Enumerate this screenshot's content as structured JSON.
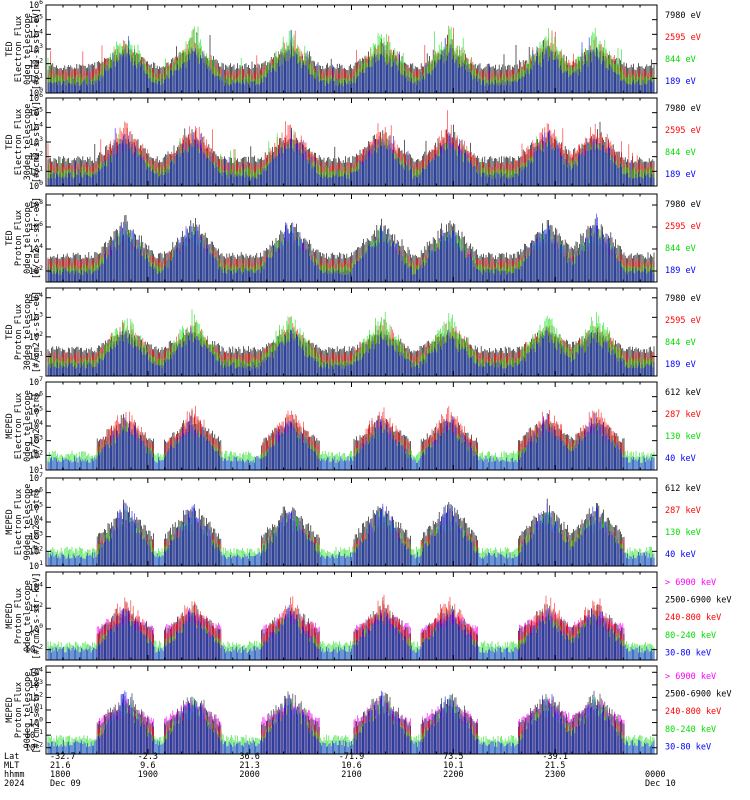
{
  "chart_data": {
    "type": "line",
    "x_axis": {
      "rows": [
        {
          "label": "Lat",
          "values": [
            "-32.7",
            "-2.3",
            "36.6",
            "-71.9",
            "73.5",
            "-39.1",
            ""
          ]
        },
        {
          "label": "MLT",
          "values": [
            "21.6",
            "9.6",
            "21.3",
            "10.6",
            "10.1",
            "21.5",
            ""
          ]
        },
        {
          "label": "hhmm",
          "values": [
            "1800",
            "1900",
            "2000",
            "2100",
            "2200",
            "2300",
            "0000"
          ]
        },
        {
          "label": "2024",
          "values": [
            "Dec 09",
            "",
            "",
            "",
            "",
            "",
            "Dec 10"
          ]
        }
      ],
      "range": [
        "1800",
        "0000"
      ]
    },
    "panels": [
      {
        "ylabel": [
          "TED",
          "Electron Flux",
          "0deg telescope",
          "[#/cm2-s-str-eV]"
        ],
        "yticks": [
          "10^0",
          "10^1",
          "10^2",
          "10^3",
          "10^4",
          "10^5",
          "10^6"
        ],
        "ylim_exp": [
          0,
          6
        ],
        "series": [
          {
            "name": "7980 eV",
            "color": "#000000"
          },
          {
            "name": "2595 eV",
            "color": "#ff0000"
          },
          {
            "name": "844 eV",
            "color": "#00dd00"
          },
          {
            "name": "189 eV",
            "color": "#0000ff"
          }
        ]
      },
      {
        "ylabel": [
          "TED",
          "Electron Flux",
          "30deg telescope",
          "[#/cm2-s-str-eV]"
        ],
        "yticks": [
          "10^0",
          "10^1",
          "10^2",
          "10^3",
          "10^4",
          "10^5",
          "10^6"
        ],
        "ylim_exp": [
          0,
          6
        ],
        "series": [
          {
            "name": "7980 eV",
            "color": "#000000"
          },
          {
            "name": "2595 eV",
            "color": "#ff0000"
          },
          {
            "name": "844 eV",
            "color": "#00dd00"
          },
          {
            "name": "189 eV",
            "color": "#0000ff"
          }
        ]
      },
      {
        "ylabel": [
          "TED",
          "Proton Flux",
          "0deg telescope",
          "[#/cm2-s-str-eV]"
        ],
        "yticks": [
          "10^2",
          "10^4",
          "10^6",
          "10^8"
        ],
        "ylim_exp": [
          1,
          9
        ],
        "series": [
          {
            "name": "7980 eV",
            "color": "#000000"
          },
          {
            "name": "2595 eV",
            "color": "#ff0000"
          },
          {
            "name": "844 eV",
            "color": "#00dd00"
          },
          {
            "name": "189 eV",
            "color": "#0000ff"
          }
        ]
      },
      {
        "ylabel": [
          "TED",
          "Proton Flux",
          "30deg telescope",
          "[#/cm2-s-str-eV]"
        ],
        "yticks": [
          "10^1",
          "10^2",
          "10^3",
          "10^4"
        ],
        "ylim_exp": [
          0,
          4.5
        ],
        "series": [
          {
            "name": "7980 eV",
            "color": "#000000"
          },
          {
            "name": "2595 eV",
            "color": "#ff0000"
          },
          {
            "name": "844 eV",
            "color": "#00dd00"
          },
          {
            "name": "189 eV",
            "color": "#0000ff"
          }
        ]
      },
      {
        "ylabel": [
          "MEPED",
          "Electron Flux",
          "0deg telescope",
          "[#/cm2-s-str]"
        ],
        "yticks": [
          "10^1",
          "10^2",
          "10^3",
          "10^4",
          "10^5",
          "10^6",
          "10^7"
        ],
        "ylim_exp": [
          1,
          7
        ],
        "series": [
          {
            "name": "612 keV",
            "color": "#000000"
          },
          {
            "name": "287 keV",
            "color": "#ff0000"
          },
          {
            "name": "130 keV",
            "color": "#00dd00"
          },
          {
            "name": "40 keV",
            "color": "#0000ff"
          }
        ]
      },
      {
        "ylabel": [
          "MEPED",
          "Electron Flux",
          "90deg telescope",
          "[#/cm2-s-str]"
        ],
        "yticks": [
          "10^1",
          "10^2",
          "10^3",
          "10^4",
          "10^5",
          "10^6",
          "10^7"
        ],
        "ylim_exp": [
          1,
          7
        ],
        "series": [
          {
            "name": "612 keV",
            "color": "#000000"
          },
          {
            "name": "287 keV",
            "color": "#ff0000"
          },
          {
            "name": "130 keV",
            "color": "#00dd00"
          },
          {
            "name": "40 keV",
            "color": "#0000ff"
          }
        ]
      },
      {
        "ylabel": [
          "MEPED",
          "Proton Flux",
          "0deg telescope",
          "[#/cm2-s-str-keV]"
        ],
        "yticks": [
          "10^-2",
          "10^0",
          "10^2",
          "10^4"
        ],
        "ylim_exp": [
          -3,
          5.5
        ],
        "series": [
          {
            "name": "> 6900 keV",
            "color": "#ff00ff"
          },
          {
            "name": "2500-6900 keV",
            "color": "#000000"
          },
          {
            "name": "240-800 keV",
            "color": "#ff0000"
          },
          {
            "name": "80-240 keV",
            "color": "#00dd00"
          },
          {
            "name": "30-80 keV",
            "color": "#0000ff"
          }
        ]
      },
      {
        "ylabel": [
          "MEPED",
          "Proton Flux",
          "90deg telescope",
          "[#/cm2-s-str-keV]"
        ],
        "yticks": [
          "10^-2",
          "10^-1",
          "10^0",
          "10^1",
          "10^2",
          "10^3",
          "10^4"
        ],
        "ylim_exp": [
          -2.5,
          4.5
        ],
        "series": [
          {
            "name": "> 6900 keV",
            "color": "#ff00ff"
          },
          {
            "name": "2500-6900 keV",
            "color": "#000000"
          },
          {
            "name": "240-800 keV",
            "color": "#ff0000"
          },
          {
            "name": "80-240 keV",
            "color": "#00dd00"
          },
          {
            "name": "30-80 keV",
            "color": "#0000ff"
          }
        ]
      }
    ]
  }
}
